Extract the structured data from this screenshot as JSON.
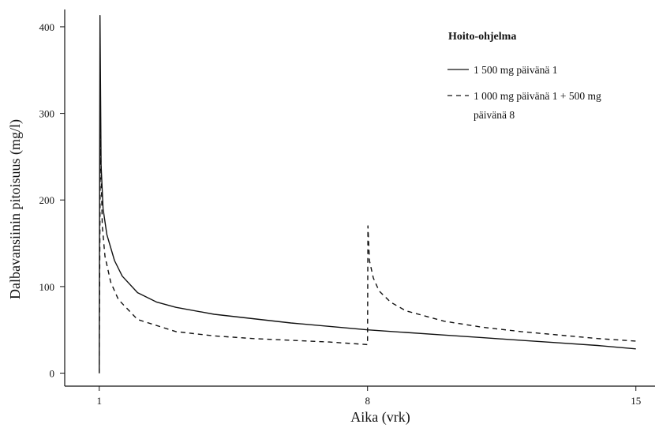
{
  "chart_data": {
    "type": "line",
    "xlabel": "Aika (vrk)",
    "ylabel": "Dalbavansiinin pitoisuus (mg/l)",
    "xlim": [
      0.1,
      15.5
    ],
    "ylim": [
      -15,
      420
    ],
    "x_ticks": [
      1,
      8,
      15
    ],
    "x_tick_labels": [
      "1",
      "8",
      "15"
    ],
    "y_ticks": [
      0,
      100,
      200,
      300,
      400
    ],
    "y_tick_labels": [
      "0",
      "100",
      "200",
      "300",
      "400"
    ],
    "grid": false,
    "legend": {
      "title": "Hoito-ohjelma",
      "placement": "top-right",
      "entries": [
        {
          "label_lines": [
            "1 500 mg päivänä 1"
          ],
          "style": "solid"
        },
        {
          "label_lines": [
            "1 000 mg päivänä 1 + 500 mg",
            "päivänä 8"
          ],
          "style": "dashed"
        }
      ]
    },
    "series": [
      {
        "style": "solid",
        "x": [
          1,
          1.02,
          1.05,
          1.1,
          1.2,
          1.4,
          1.6,
          2,
          2.5,
          3,
          4,
          5,
          6,
          7,
          8,
          9,
          10,
          11,
          12,
          13,
          14,
          15
        ],
        "y": [
          0,
          413,
          240,
          190,
          160,
          130,
          112,
          93,
          82,
          76,
          68,
          63,
          58,
          54,
          50,
          47,
          44,
          41,
          38,
          35,
          32,
          28
        ]
      },
      {
        "style": "dashed",
        "x": [
          1,
          1.03,
          1.08,
          1.15,
          1.3,
          1.5,
          2,
          3,
          4,
          5,
          6,
          7,
          8,
          8.01,
          8.05,
          8.15,
          8.3,
          8.6,
          9,
          10,
          11,
          12,
          13,
          14,
          15
        ],
        "y": [
          0,
          275,
          170,
          135,
          105,
          85,
          62,
          48,
          43,
          40,
          38,
          36,
          33,
          170,
          130,
          110,
          95,
          82,
          72,
          60,
          53,
          48,
          44,
          40,
          37
        ]
      }
    ]
  }
}
